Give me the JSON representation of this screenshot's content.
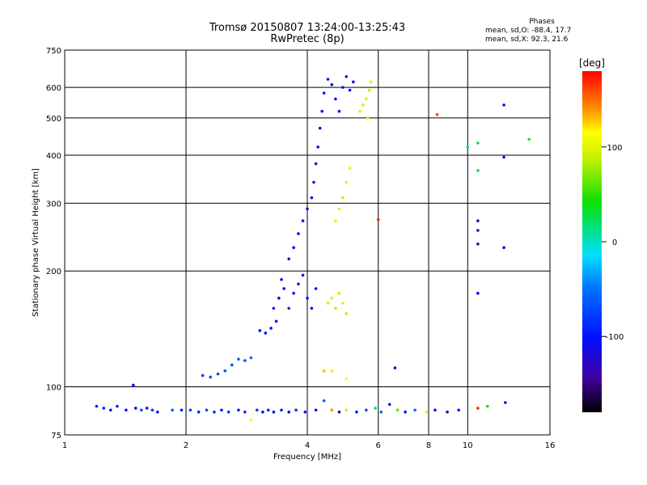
{
  "title": {
    "line1": "Tromsø 20150807 13:24:00-13:25:43",
    "line2": "RwPretec (8p)"
  },
  "stats": {
    "heading": "Phases",
    "line_o": "mean, sd,O: -88.4, 17.7",
    "line_x": "mean, sd,X:  92.3, 21.6"
  },
  "colorbar": {
    "unit": "[deg]",
    "ticks": [
      {
        "value": 100,
        "label": "100"
      },
      {
        "value": 0,
        "label": "0"
      },
      {
        "value": -100,
        "label": "-100"
      }
    ],
    "range": [
      -180,
      180
    ]
  },
  "chart_data": {
    "type": "scatter",
    "xlabel": "Frequency [MHz]",
    "ylabel": "Stationary phase Virtual Height [km]",
    "xscale": "log",
    "yscale": "log",
    "xlim": [
      1,
      16
    ],
    "ylim": [
      75,
      750
    ],
    "xticks": [
      {
        "value": 1,
        "label": "1"
      },
      {
        "value": 2,
        "label": "2"
      },
      {
        "value": 4,
        "label": "4"
      },
      {
        "value": 6,
        "label": "6"
      },
      {
        "value": 8,
        "label": "8"
      },
      {
        "value": 10,
        "label": "10"
      },
      {
        "value": 16,
        "label": "16"
      }
    ],
    "yticks": [
      {
        "value": 75,
        "label": "75"
      },
      {
        "value": 100,
        "label": "100"
      },
      {
        "value": 200,
        "label": "200"
      },
      {
        "value": 300,
        "label": "300"
      },
      {
        "value": 400,
        "label": "400"
      },
      {
        "value": 500,
        "label": "500"
      },
      {
        "value": 600,
        "label": "600"
      },
      {
        "value": 750,
        "label": "750"
      }
    ],
    "grid": true,
    "color_scale": "phase in degrees",
    "points": [
      {
        "x": 1.2,
        "y": 89,
        "phase": -100
      },
      {
        "x": 1.25,
        "y": 88,
        "phase": -90
      },
      {
        "x": 1.3,
        "y": 87,
        "phase": -110
      },
      {
        "x": 1.35,
        "y": 89,
        "phase": -95
      },
      {
        "x": 1.42,
        "y": 87,
        "phase": -105
      },
      {
        "x": 1.48,
        "y": 101,
        "phase": -100
      },
      {
        "x": 1.5,
        "y": 88,
        "phase": -110
      },
      {
        "x": 1.55,
        "y": 87,
        "phase": -70
      },
      {
        "x": 1.6,
        "y": 88,
        "phase": -100
      },
      {
        "x": 1.65,
        "y": 87,
        "phase": -80
      },
      {
        "x": 1.7,
        "y": 86,
        "phase": -100
      },
      {
        "x": 1.85,
        "y": 87,
        "phase": -60
      },
      {
        "x": 1.95,
        "y": 87,
        "phase": -90
      },
      {
        "x": 2.05,
        "y": 87,
        "phase": -75
      },
      {
        "x": 2.15,
        "y": 86,
        "phase": -95
      },
      {
        "x": 2.25,
        "y": 87,
        "phase": -70
      },
      {
        "x": 2.35,
        "y": 86,
        "phase": -85
      },
      {
        "x": 2.45,
        "y": 87,
        "phase": -100
      },
      {
        "x": 2.55,
        "y": 86,
        "phase": -80
      },
      {
        "x": 2.7,
        "y": 87,
        "phase": -95
      },
      {
        "x": 2.8,
        "y": 86,
        "phase": -90
      },
      {
        "x": 2.9,
        "y": 82,
        "phase": 110
      },
      {
        "x": 3.0,
        "y": 87,
        "phase": -80
      },
      {
        "x": 3.1,
        "y": 86,
        "phase": -100
      },
      {
        "x": 3.2,
        "y": 87,
        "phase": -90
      },
      {
        "x": 3.3,
        "y": 86,
        "phase": -105
      },
      {
        "x": 3.45,
        "y": 87,
        "phase": -95
      },
      {
        "x": 3.6,
        "y": 86,
        "phase": -110
      },
      {
        "x": 3.75,
        "y": 87,
        "phase": -90
      },
      {
        "x": 3.95,
        "y": 86,
        "phase": -100
      },
      {
        "x": 4.2,
        "y": 87,
        "phase": -120
      },
      {
        "x": 4.4,
        "y": 92,
        "phase": -60
      },
      {
        "x": 4.6,
        "y": 87,
        "phase": 140
      },
      {
        "x": 4.8,
        "y": 86,
        "phase": -130
      },
      {
        "x": 5.0,
        "y": 87,
        "phase": 90
      },
      {
        "x": 5.3,
        "y": 86,
        "phase": -100
      },
      {
        "x": 5.6,
        "y": 87,
        "phase": -70
      },
      {
        "x": 5.9,
        "y": 88,
        "phase": 20
      },
      {
        "x": 6.1,
        "y": 86,
        "phase": -60
      },
      {
        "x": 6.4,
        "y": 90,
        "phase": -100
      },
      {
        "x": 6.7,
        "y": 87,
        "phase": 60
      },
      {
        "x": 7.0,
        "y": 86,
        "phase": -110
      },
      {
        "x": 7.4,
        "y": 87,
        "phase": -50
      },
      {
        "x": 7.9,
        "y": 86,
        "phase": 120
      },
      {
        "x": 8.3,
        "y": 87,
        "phase": -100
      },
      {
        "x": 8.9,
        "y": 86,
        "phase": -150
      },
      {
        "x": 9.5,
        "y": 87,
        "phase": -100
      },
      {
        "x": 10.6,
        "y": 88,
        "phase": 170
      },
      {
        "x": 11.2,
        "y": 89,
        "phase": 40
      },
      {
        "x": 12.4,
        "y": 91,
        "phase": -100
      },
      {
        "x": 2.2,
        "y": 107,
        "phase": -80
      },
      {
        "x": 2.3,
        "y": 106,
        "phase": -70
      },
      {
        "x": 2.4,
        "y": 108,
        "phase": -75
      },
      {
        "x": 2.5,
        "y": 110,
        "phase": -65
      },
      {
        "x": 2.6,
        "y": 114,
        "phase": -70
      },
      {
        "x": 2.7,
        "y": 118,
        "phase": -60
      },
      {
        "x": 2.8,
        "y": 117,
        "phase": -65
      },
      {
        "x": 2.9,
        "y": 119,
        "phase": -55
      },
      {
        "x": 3.05,
        "y": 140,
        "phase": -110
      },
      {
        "x": 3.15,
        "y": 138,
        "phase": -100
      },
      {
        "x": 3.25,
        "y": 142,
        "phase": -105
      },
      {
        "x": 3.35,
        "y": 148,
        "phase": -110
      },
      {
        "x": 3.3,
        "y": 160,
        "phase": -100
      },
      {
        "x": 3.4,
        "y": 170,
        "phase": -105
      },
      {
        "x": 3.5,
        "y": 180,
        "phase": -100
      },
      {
        "x": 3.45,
        "y": 190,
        "phase": -110
      },
      {
        "x": 3.6,
        "y": 160,
        "phase": -90
      },
      {
        "x": 3.7,
        "y": 175,
        "phase": -100
      },
      {
        "x": 3.8,
        "y": 185,
        "phase": -95
      },
      {
        "x": 3.9,
        "y": 195,
        "phase": -105
      },
      {
        "x": 4.0,
        "y": 170,
        "phase": -100
      },
      {
        "x": 4.1,
        "y": 160,
        "phase": -110
      },
      {
        "x": 4.2,
        "y": 180,
        "phase": -100
      },
      {
        "x": 3.6,
        "y": 215,
        "phase": -110
      },
      {
        "x": 3.7,
        "y": 230,
        "phase": -105
      },
      {
        "x": 3.8,
        "y": 250,
        "phase": -110
      },
      {
        "x": 3.9,
        "y": 270,
        "phase": -100
      },
      {
        "x": 4.0,
        "y": 290,
        "phase": -105
      },
      {
        "x": 4.1,
        "y": 310,
        "phase": -110
      },
      {
        "x": 4.15,
        "y": 340,
        "phase": -100
      },
      {
        "x": 4.2,
        "y": 380,
        "phase": -110
      },
      {
        "x": 4.25,
        "y": 420,
        "phase": -105
      },
      {
        "x": 4.3,
        "y": 470,
        "phase": -110
      },
      {
        "x": 4.35,
        "y": 520,
        "phase": -100
      },
      {
        "x": 4.4,
        "y": 580,
        "phase": -110
      },
      {
        "x": 4.5,
        "y": 630,
        "phase": -105
      },
      {
        "x": 4.6,
        "y": 610,
        "phase": -110
      },
      {
        "x": 4.7,
        "y": 560,
        "phase": -100
      },
      {
        "x": 4.8,
        "y": 520,
        "phase": -110
      },
      {
        "x": 4.9,
        "y": 600,
        "phase": -105
      },
      {
        "x": 5.0,
        "y": 640,
        "phase": -110
      },
      {
        "x": 5.1,
        "y": 590,
        "phase": -100
      },
      {
        "x": 5.2,
        "y": 620,
        "phase": -110
      },
      {
        "x": 4.5,
        "y": 165,
        "phase": 90
      },
      {
        "x": 4.6,
        "y": 170,
        "phase": 95
      },
      {
        "x": 4.7,
        "y": 160,
        "phase": 85
      },
      {
        "x": 4.8,
        "y": 175,
        "phase": 90
      },
      {
        "x": 4.9,
        "y": 165,
        "phase": 95
      },
      {
        "x": 5.0,
        "y": 155,
        "phase": 90
      },
      {
        "x": 4.7,
        "y": 270,
        "phase": 100
      },
      {
        "x": 4.8,
        "y": 290,
        "phase": 95
      },
      {
        "x": 4.9,
        "y": 310,
        "phase": 90
      },
      {
        "x": 5.0,
        "y": 340,
        "phase": 100
      },
      {
        "x": 5.1,
        "y": 370,
        "phase": 120
      },
      {
        "x": 5.4,
        "y": 520,
        "phase": 95
      },
      {
        "x": 5.5,
        "y": 540,
        "phase": 90
      },
      {
        "x": 5.6,
        "y": 560,
        "phase": 95
      },
      {
        "x": 5.7,
        "y": 590,
        "phase": 90
      },
      {
        "x": 5.75,
        "y": 620,
        "phase": 100
      },
      {
        "x": 5.65,
        "y": 500,
        "phase": 95
      },
      {
        "x": 6.0,
        "y": 272,
        "phase": 170
      },
      {
        "x": 6.6,
        "y": 112,
        "phase": -100
      },
      {
        "x": 8.4,
        "y": 510,
        "phase": 160
      },
      {
        "x": 10.0,
        "y": 420,
        "phase": 20
      },
      {
        "x": 10.6,
        "y": 430,
        "phase": 30
      },
      {
        "x": 10.6,
        "y": 365,
        "phase": 30
      },
      {
        "x": 10.6,
        "y": 270,
        "phase": -130
      },
      {
        "x": 10.6,
        "y": 255,
        "phase": -140
      },
      {
        "x": 10.6,
        "y": 235,
        "phase": -150
      },
      {
        "x": 10.6,
        "y": 175,
        "phase": -110
      },
      {
        "x": 12.3,
        "y": 540,
        "phase": -100
      },
      {
        "x": 12.3,
        "y": 395,
        "phase": -110
      },
      {
        "x": 12.3,
        "y": 230,
        "phase": -130
      },
      {
        "x": 14.2,
        "y": 440,
        "phase": 30
      },
      {
        "x": 4.4,
        "y": 110,
        "phase": 130
      },
      {
        "x": 4.6,
        "y": 110,
        "phase": 120
      },
      {
        "x": 5.0,
        "y": 105,
        "phase": 110
      }
    ]
  }
}
